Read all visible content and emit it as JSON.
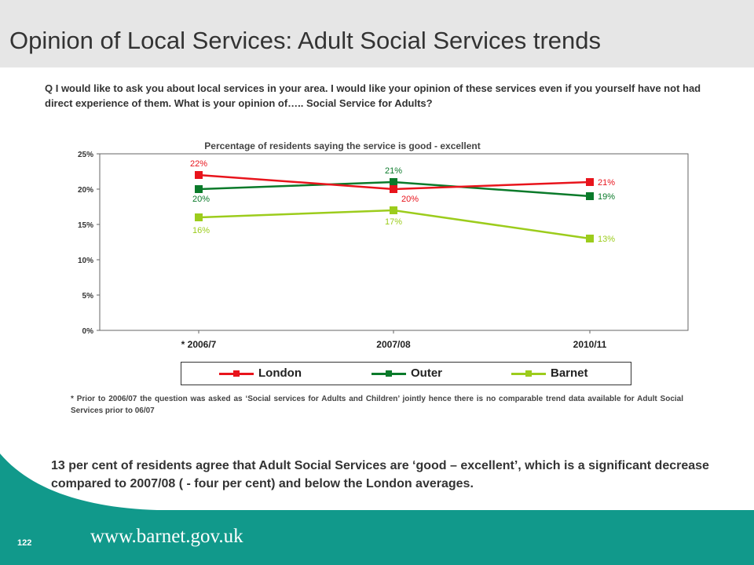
{
  "slide": {
    "title": "Opinion of Local Services: Adult Social Services trends",
    "question": "Q I would like to ask you about local services in your area. I would like your opinion of these services even if you yourself have not had direct experience of them. What is your opinion of….. Social Service for Adults?",
    "footnote": "* Prior to 2006/07 the question was asked as ‘Social services for Adults and Children’ jointly hence there is no comparable trend data available for Adult Social Services prior to 06/07",
    "summary": "13 per cent of residents agree that Adult Social Services are ‘good – excellent’, which is  a significant decrease compared to 2007/08 ( - four per cent)  and below the London averages.",
    "page_number": "122",
    "url": "www.barnet.gov.uk"
  },
  "colors": {
    "London": "#e8141c",
    "Outer": "#0a7a2a",
    "Barnet": "#9ccc1c",
    "teal": "#11998b"
  },
  "chart_data": {
    "type": "line",
    "title": "Percentage of residents saying the service is good - excellent",
    "categories": [
      "* 2006/7",
      "2007/08",
      "2010/11"
    ],
    "ylim": [
      0,
      25
    ],
    "yticks": [
      0,
      5,
      10,
      15,
      20,
      25
    ],
    "ytick_labels": [
      "0%",
      "5%",
      "10%",
      "15%",
      "20%",
      "25%"
    ],
    "grid": false,
    "legend_position": "bottom",
    "series": [
      {
        "name": "London",
        "values": [
          22,
          20,
          21
        ],
        "labels": [
          "22%",
          "20%",
          "21%"
        ]
      },
      {
        "name": "Outer",
        "values": [
          20,
          21,
          19
        ],
        "labels": [
          "20%",
          "21%",
          "19%"
        ]
      },
      {
        "name": "Barnet",
        "values": [
          16,
          17,
          13
        ],
        "labels": [
          "16%",
          "17%",
          "13%"
        ]
      }
    ]
  }
}
